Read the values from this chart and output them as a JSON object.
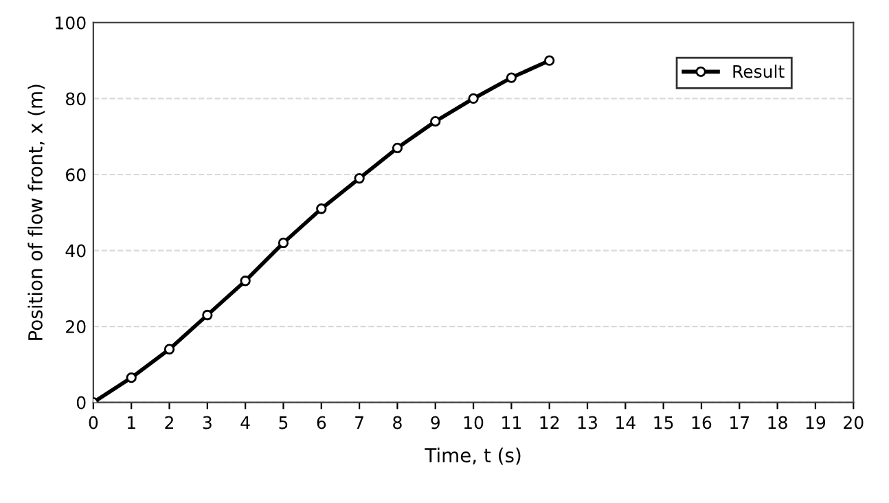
{
  "chart_data": {
    "type": "line",
    "xlabel": "Time, t (s)",
    "ylabel": "Position of flow front, x (m)",
    "x": [
      0,
      1,
      2,
      3,
      4,
      5,
      6,
      7,
      8,
      9,
      10,
      11,
      12
    ],
    "series": [
      {
        "name": "Result",
        "color": "#000000",
        "values": [
          0,
          6.5,
          14,
          23,
          32,
          42,
          51,
          59,
          67,
          74,
          80,
          85.5,
          90
        ]
      }
    ],
    "xlim": [
      0,
      20
    ],
    "xticks": [
      0,
      1,
      2,
      3,
      4,
      5,
      6,
      7,
      8,
      9,
      10,
      11,
      12,
      13,
      14,
      15,
      16,
      17,
      18,
      19,
      20
    ],
    "ylim": [
      0,
      100
    ],
    "yticks": [
      0,
      20,
      40,
      60,
      80,
      100
    ],
    "grid": "y",
    "legend": "top right",
    "marker": "circle",
    "line_style": "solid"
  }
}
